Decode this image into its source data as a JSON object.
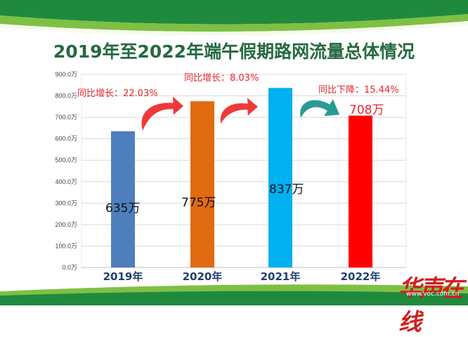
{
  "title": "2019年至2022年端午假期路网流量总体情况",
  "chart_data": {
    "type": "bar",
    "categories": [
      "2019年",
      "2020年",
      "2021年",
      "2022年"
    ],
    "values": [
      635,
      775,
      837,
      708
    ],
    "value_labels": [
      "635万",
      "775万",
      "837万",
      "708万"
    ],
    "colors": [
      "#4f7ebd",
      "#e26a10",
      "#00b0f0",
      "#ff0000"
    ],
    "y_ticks": [
      "0.0万",
      "100.0万",
      "200.0万",
      "300.0万",
      "400.0万",
      "500.0万",
      "600.0万",
      "700.0万",
      "800.0万",
      "900.0万"
    ],
    "ylim": [
      0,
      900
    ],
    "grid": true,
    "annotations": [
      {
        "text": "同比增长：22.03%",
        "color": "#e8262b"
      },
      {
        "text": "同比增长：8.03%",
        "color": "#e8262b"
      },
      {
        "text": "同比下降：15.44%",
        "color": "#e8262b"
      }
    ],
    "arrow_colors": [
      "#ef3a3a",
      "#ef3a3a",
      "#2a9a92"
    ]
  },
  "logo": "华声在线",
  "site": "www.voc.com.cn",
  "colors": {
    "green_dark": "#1f8a3e",
    "green_light": "#7ec043",
    "title": "#246a3f"
  }
}
